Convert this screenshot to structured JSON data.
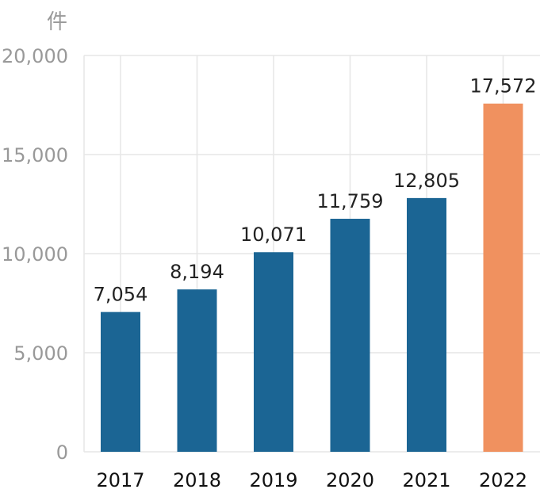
{
  "chart_data": {
    "type": "bar",
    "title": "",
    "unit_label": "件",
    "xlabel": "",
    "ylabel": "件",
    "categories": [
      "2017",
      "2018",
      "2019",
      "2020",
      "2021",
      "2022"
    ],
    "values": [
      7054,
      8194,
      10071,
      11759,
      12805,
      17572
    ],
    "value_labels": [
      "7,054",
      "8,194",
      "10,071",
      "11,759",
      "12,805",
      "17,572"
    ],
    "ylim": [
      0,
      20000
    ],
    "yticks": [
      0,
      5000,
      10000,
      15000,
      20000
    ],
    "ytick_labels": [
      "0",
      "5,000",
      "10,000",
      "15,000",
      "20,000"
    ],
    "grid": true,
    "colors": {
      "bar": "#1b6594",
      "highlight": "#f0915f",
      "grid": "#e6e6e6",
      "tick_text": "#999999",
      "label_text": "#222222",
      "x_text": "#111111"
    },
    "highlight_category": "2022"
  }
}
